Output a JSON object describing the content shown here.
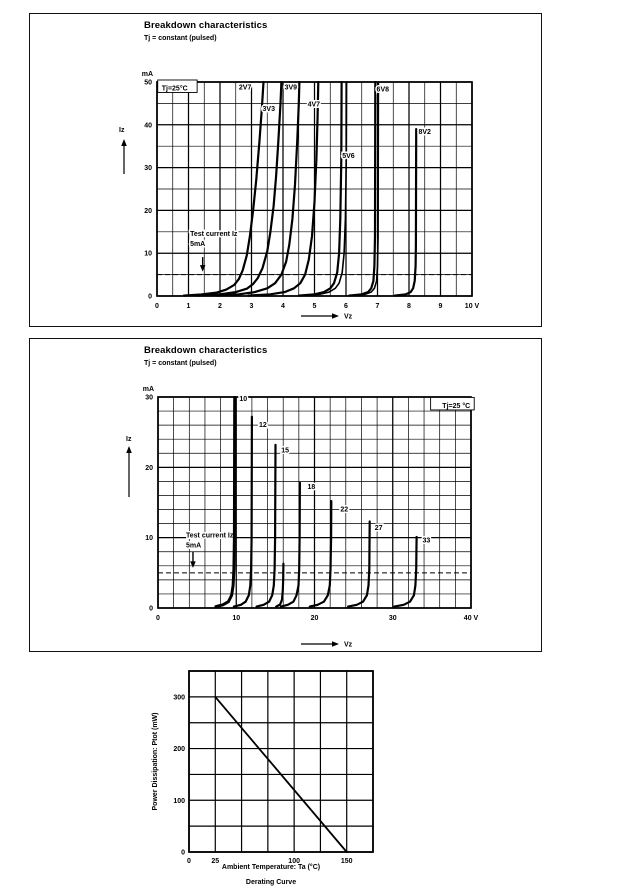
{
  "page": {
    "background": "#ffffff",
    "ink": "#000000"
  },
  "chart_data": [
    {
      "type": "line",
      "title": "Breakdown characteristics",
      "subtitle": "Tj = constant (pulsed)",
      "corner_label": {
        "text": "Tj=25°C",
        "xy": [
          0.15,
          48.6
        ],
        "anchor": "start"
      },
      "xlabel": "Vz",
      "ylabel": "Iz",
      "x_unit": "V",
      "y_unit": "mA",
      "xlim": [
        0,
        10
      ],
      "ylim": [
        0,
        50
      ],
      "x_minor": 0.5,
      "x_major": 1,
      "y_minor": 5,
      "y_major": 10,
      "x_tick_labels": [
        "0",
        "1",
        "2",
        "3",
        "4",
        "5",
        "6",
        "7",
        "8",
        "9",
        "10 V"
      ],
      "y_tick_labels": [
        "0",
        "10",
        "20",
        "30",
        "40",
        "50"
      ],
      "grid": true,
      "legend": "none",
      "test_current": {
        "lines": [
          "Test current Iz",
          "5mA"
        ],
        "dash_y": 5,
        "text_xy": [
          1.05,
          14.0
        ],
        "arrow": {
          "x": 1.45,
          "from": 9.1,
          "to": 5.7
        }
      },
      "series": [
        {
          "name": "2V7",
          "label_xy": [
            2.6,
            48.3
          ],
          "points": [
            [
              0.85,
              0.1
            ],
            [
              1.4,
              0.35
            ],
            [
              1.9,
              0.8
            ],
            [
              2.2,
              1.5
            ],
            [
              2.45,
              2.6
            ],
            [
              2.6,
              4
            ],
            [
              2.72,
              6
            ],
            [
              2.85,
              9.5
            ],
            [
              2.95,
              14
            ],
            [
              3.05,
              20
            ],
            [
              3.15,
              27
            ],
            [
              3.25,
              36
            ],
            [
              3.33,
              44
            ],
            [
              3.38,
              50
            ]
          ]
        },
        {
          "name": "3V3",
          "label_xy": [
            3.35,
            43.2
          ],
          "points": [
            [
              1.3,
              0.1
            ],
            [
              2.0,
              0.4
            ],
            [
              2.5,
              0.9
            ],
            [
              2.85,
              1.7
            ],
            [
              3.05,
              2.8
            ],
            [
              3.2,
              4.2
            ],
            [
              3.35,
              6.5
            ],
            [
              3.5,
              10.5
            ],
            [
              3.6,
              15
            ],
            [
              3.7,
              21
            ],
            [
              3.78,
              28
            ],
            [
              3.85,
              36
            ],
            [
              3.92,
              45
            ],
            [
              3.95,
              50
            ]
          ]
        },
        {
          "name": "3V9",
          "label_xy": [
            4.05,
            48.3
          ],
          "points": [
            [
              1.9,
              0.1
            ],
            [
              2.6,
              0.4
            ],
            [
              3.1,
              0.9
            ],
            [
              3.5,
              1.8
            ],
            [
              3.75,
              3
            ],
            [
              3.95,
              5
            ],
            [
              4.1,
              8
            ],
            [
              4.2,
              12
            ],
            [
              4.3,
              18
            ],
            [
              4.38,
              26
            ],
            [
              4.45,
              36
            ],
            [
              4.5,
              45
            ],
            [
              4.52,
              50
            ]
          ]
        },
        {
          "name": "4V7",
          "label_xy": [
            4.78,
            44.3
          ],
          "points": [
            [
              2.9,
              0.1
            ],
            [
              3.6,
              0.4
            ],
            [
              4.05,
              0.9
            ],
            [
              4.35,
              1.8
            ],
            [
              4.55,
              3
            ],
            [
              4.7,
              5
            ],
            [
              4.82,
              8.5
            ],
            [
              4.92,
              14
            ],
            [
              5.0,
              22
            ],
            [
              5.06,
              32
            ],
            [
              5.1,
              42
            ],
            [
              5.12,
              50
            ]
          ]
        },
        {
          "name": "5V6",
          "label_xy": [
            5.88,
            32.3
          ],
          "twin_dx": 0.16,
          "points": [
            [
              4.5,
              0.1
            ],
            [
              5.0,
              0.4
            ],
            [
              5.3,
              0.9
            ],
            [
              5.5,
              1.8
            ],
            [
              5.62,
              3
            ],
            [
              5.72,
              5.5
            ],
            [
              5.78,
              10
            ],
            [
              5.82,
              18
            ],
            [
              5.85,
              32
            ],
            [
              5.86,
              50
            ]
          ]
        },
        {
          "name": "6V8",
          "label_xy": [
            6.97,
            47.8
          ],
          "twin_dx": 0.1,
          "points": [
            [
              6.1,
              0.1
            ],
            [
              6.5,
              0.4
            ],
            [
              6.7,
              0.9
            ],
            [
              6.8,
              1.8
            ],
            [
              6.87,
              3.5
            ],
            [
              6.9,
              7
            ],
            [
              6.92,
              14
            ],
            [
              6.93,
              50
            ]
          ]
        },
        {
          "name": "8V2",
          "label_xy": [
            8.3,
            37.8
          ],
          "points": [
            [
              7.55,
              0.1
            ],
            [
              7.9,
              0.4
            ],
            [
              8.05,
              0.9
            ],
            [
              8.13,
              1.8
            ],
            [
              8.18,
              3.5
            ],
            [
              8.21,
              7
            ],
            [
              8.22,
              12
            ],
            [
              8.23,
              39
            ]
          ]
        }
      ]
    },
    {
      "type": "line",
      "title": "Breakdown characteristics",
      "subtitle": "Tj = constant (pulsed)",
      "corner_label": {
        "text": "Tj=25 °C",
        "xy": [
          39.9,
          28.8
        ],
        "anchor": "end"
      },
      "xlabel": "Vz",
      "ylabel": "Iz",
      "x_unit": "V",
      "y_unit": "mA",
      "xlim": [
        0,
        40
      ],
      "ylim": [
        0,
        30
      ],
      "x_minor": 2,
      "x_major": 10,
      "y_minor": 2,
      "y_major": 10,
      "x_tick_labels": [
        "0",
        "10",
        "20",
        "30",
        "40 V"
      ],
      "y_tick_labels": [
        "0",
        "10",
        "20",
        "30"
      ],
      "grid": true,
      "legend": "none",
      "test_current": {
        "lines": [
          "Test current Iz",
          "5mA"
        ],
        "dash_y": 5,
        "text_xy": [
          3.58,
          10.0
        ],
        "arrow": {
          "x": 4.47,
          "from": 8.0,
          "to": 5.7
        }
      },
      "series": [
        {
          "name": "10",
          "w": 3,
          "label_xy": [
            10.4,
            29.4
          ],
          "points": [
            [
              7.4,
              0.2
            ],
            [
              8.3,
              0.45
            ],
            [
              9.0,
              0.9
            ],
            [
              9.4,
              1.8
            ],
            [
              9.6,
              3.2
            ],
            [
              9.7,
              5.5
            ],
            [
              9.76,
              10
            ],
            [
              9.8,
              30
            ]
          ]
        },
        {
          "name": "12",
          "label_xy": [
            12.9,
            25.7
          ],
          "points": [
            [
              9.7,
              0.2
            ],
            [
              10.6,
              0.45
            ],
            [
              11.2,
              0.9
            ],
            [
              11.6,
              1.8
            ],
            [
              11.8,
              3.2
            ],
            [
              11.9,
              5.5
            ],
            [
              11.96,
              10
            ],
            [
              12.0,
              27.2
            ]
          ]
        },
        {
          "name": "15",
          "label_xy": [
            15.75,
            22.1
          ],
          "points": [
            [
              12.6,
              0.2
            ],
            [
              13.5,
              0.45
            ],
            [
              14.2,
              0.9
            ],
            [
              14.6,
              1.8
            ],
            [
              14.8,
              3.2
            ],
            [
              14.9,
              5.5
            ],
            [
              14.97,
              10
            ],
            [
              15.02,
              23.2
            ]
          ]
        },
        {
          "name": "",
          "points": [
            [
              15.1,
              0.2
            ],
            [
              15.6,
              0.5
            ],
            [
              15.85,
              1.2
            ],
            [
              15.95,
              2.5
            ],
            [
              16.0,
              4.2
            ],
            [
              16.02,
              6.3
            ]
          ]
        },
        {
          "name": "18",
          "label_xy": [
            19.1,
            16.9
          ],
          "points": [
            [
              15.7,
              0.2
            ],
            [
              16.6,
              0.45
            ],
            [
              17.3,
              0.9
            ],
            [
              17.7,
              1.8
            ],
            [
              17.95,
              3.2
            ],
            [
              18.05,
              5.5
            ],
            [
              18.1,
              10
            ],
            [
              18.13,
              17.8
            ]
          ]
        },
        {
          "name": "22",
          "label_xy": [
            23.3,
            13.7
          ],
          "points": [
            [
              19.4,
              0.2
            ],
            [
              20.4,
              0.45
            ],
            [
              21.2,
              0.9
            ],
            [
              21.7,
              1.8
            ],
            [
              21.95,
              3.2
            ],
            [
              22.05,
              5.5
            ],
            [
              22.12,
              10
            ],
            [
              22.15,
              15.2
            ]
          ]
        },
        {
          "name": "27",
          "label_xy": [
            27.7,
            11.1
          ],
          "points": [
            [
              24.3,
              0.2
            ],
            [
              25.4,
              0.45
            ],
            [
              26.2,
              0.9
            ],
            [
              26.7,
              1.8
            ],
            [
              26.9,
              3.2
            ],
            [
              27.0,
              5.5
            ],
            [
              27.05,
              12.3
            ]
          ]
        },
        {
          "name": "33",
          "label_xy": [
            33.8,
            9.3
          ],
          "points": [
            [
              30.2,
              0.2
            ],
            [
              31.4,
              0.45
            ],
            [
              32.2,
              0.9
            ],
            [
              32.7,
              1.8
            ],
            [
              32.9,
              3.2
            ],
            [
              33.0,
              5.5
            ],
            [
              33.05,
              10.1
            ]
          ]
        }
      ]
    },
    {
      "type": "line",
      "caption": "Derating Curve",
      "xlabel": "Ambient Temperature: Ta (°C)",
      "ylabel": "Power Dissipation: Ptot (mW)",
      "xlim": [
        0,
        175
      ],
      "ylim": [
        0,
        350
      ],
      "x_minor": 25,
      "y_minor": 50,
      "grid": true,
      "legend": "none",
      "x_ticks": [
        {
          "v": 0,
          "t": "0"
        },
        {
          "v": 25,
          "t": "25"
        },
        {
          "v": 100,
          "t": "100"
        },
        {
          "v": 150,
          "t": "150"
        }
      ],
      "y_ticks": [
        {
          "v": 0,
          "t": "0"
        },
        {
          "v": 100,
          "t": "100"
        },
        {
          "v": 200,
          "t": "200"
        },
        {
          "v": 300,
          "t": "300"
        }
      ],
      "series": [
        {
          "name": "derating",
          "points": [
            [
              25,
              300
            ],
            [
              150,
              0
            ]
          ]
        }
      ]
    }
  ]
}
